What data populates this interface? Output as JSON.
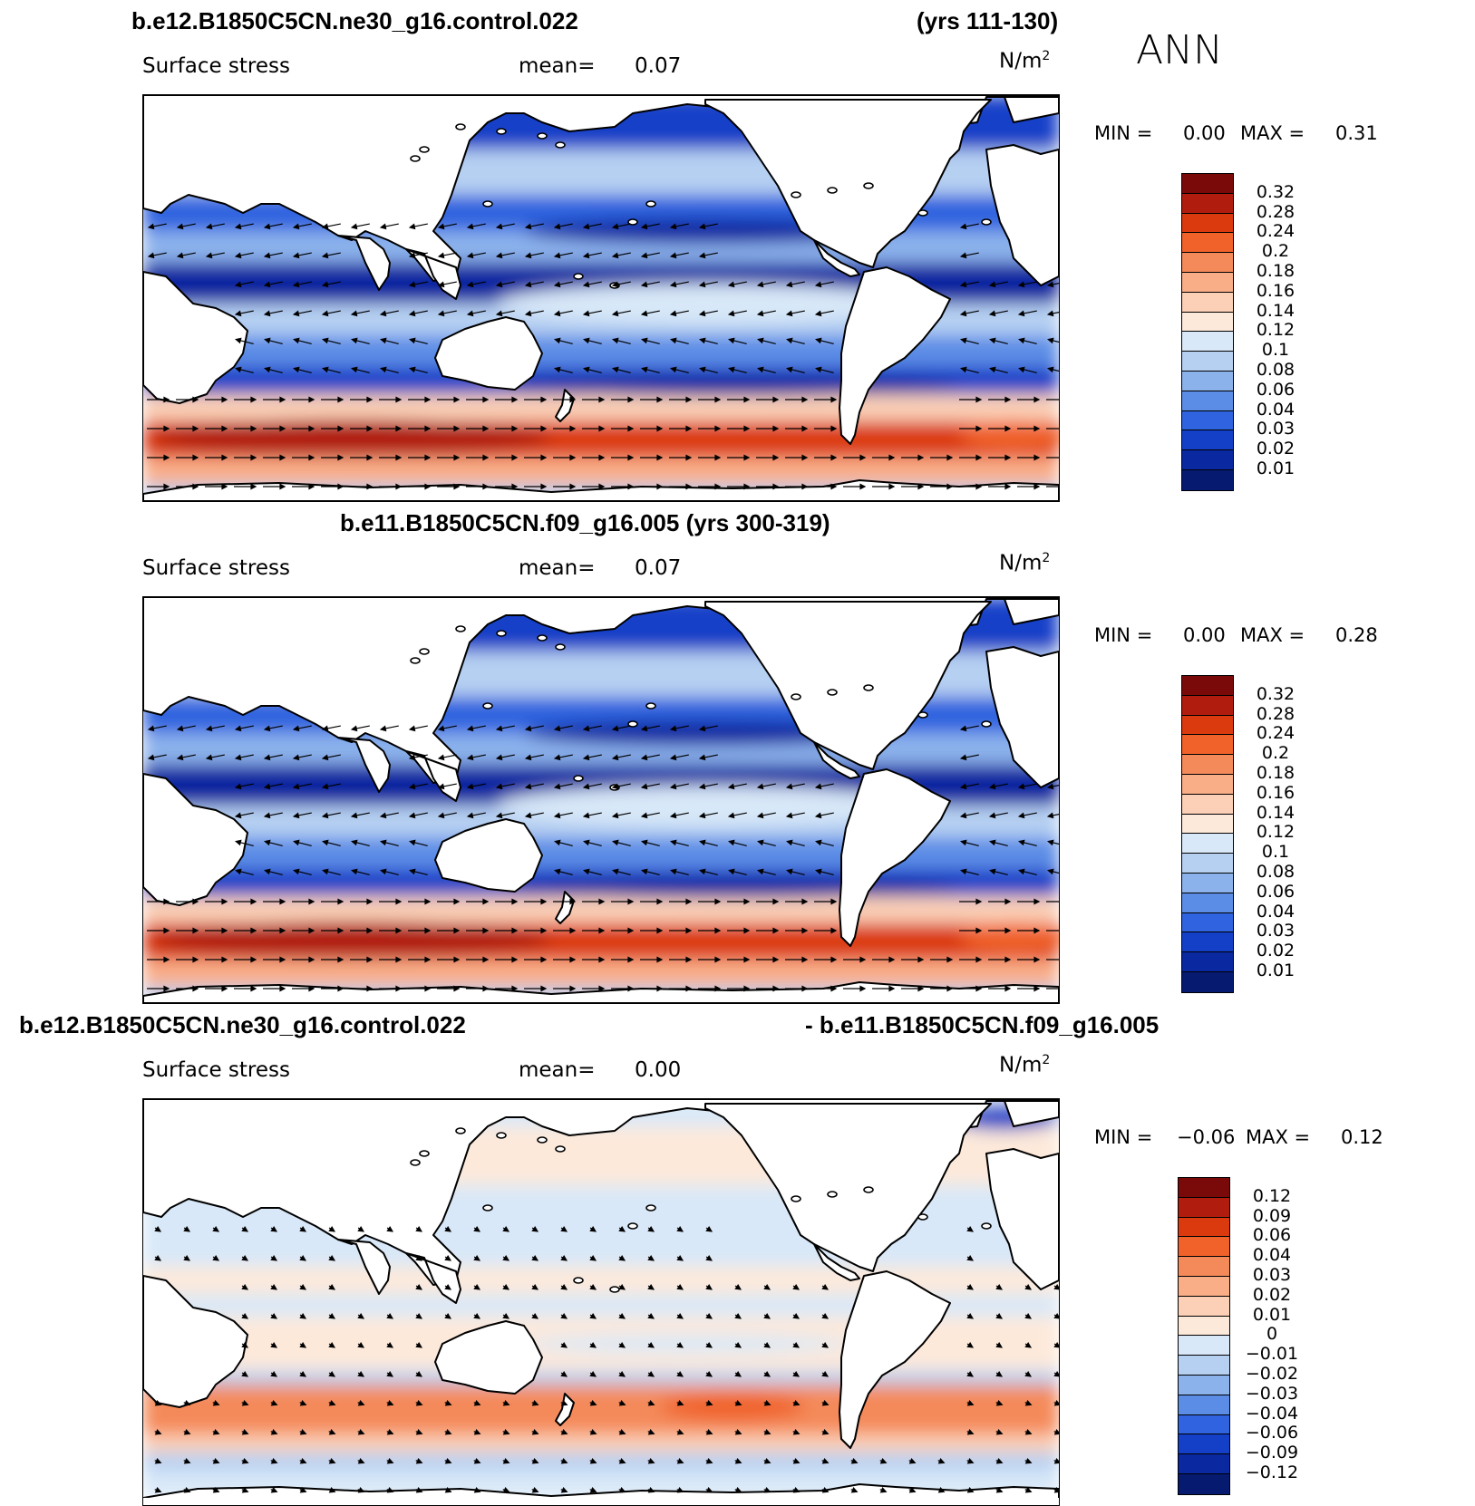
{
  "annual_label": "ANN",
  "panels": [
    {
      "id": "p1",
      "top": 0,
      "case_title_left": "b.e12.B1850C5CN.ne30_g16.control.022",
      "case_title_right": "(yrs 111-130)",
      "variable": "Surface stress",
      "mean_label": "mean=",
      "mean_value": "0.07",
      "units": "N/m",
      "units_sup": "2",
      "min_label": "MIN =",
      "min_value": "0.00",
      "max_label": "MAX =",
      "max_value": "0.31",
      "colorbar": {
        "labels": [
          "0.32",
          "0.28",
          "0.24",
          "0.2",
          "0.18",
          "0.16",
          "0.14",
          "0.12",
          "0.1",
          "0.08",
          "0.06",
          "0.04",
          "0.03",
          "0.02",
          "0.01"
        ],
        "colors": [
          "#7a0a0a",
          "#b01d0e",
          "#db3a0f",
          "#f0622a",
          "#f48a5a",
          "#f9ae88",
          "#fbd0b6",
          "#fde9da",
          "#d8e8f8",
          "#b6d0f2",
          "#8cb2ec",
          "#5b8de6",
          "#2f63df",
          "#1440c8",
          "#0a28a0",
          "#061a70"
        ]
      }
    },
    {
      "id": "p2",
      "case_title_center": "b.e11.B1850C5CN.f09_g16.005 (yrs 300-319)",
      "variable": "Surface stress",
      "mean_label": "mean=",
      "mean_value": "0.07",
      "units": "N/m",
      "units_sup": "2",
      "min_label": "MIN =",
      "min_value": "0.00",
      "max_label": "MAX =",
      "max_value": "0.28",
      "colorbar": {
        "labels": [
          "0.32",
          "0.28",
          "0.24",
          "0.2",
          "0.18",
          "0.16",
          "0.14",
          "0.12",
          "0.1",
          "0.08",
          "0.06",
          "0.04",
          "0.03",
          "0.02",
          "0.01"
        ],
        "colors": [
          "#7a0a0a",
          "#b01d0e",
          "#db3a0f",
          "#f0622a",
          "#f48a5a",
          "#f9ae88",
          "#fbd0b6",
          "#fde9da",
          "#d8e8f8",
          "#b6d0f2",
          "#8cb2ec",
          "#5b8de6",
          "#2f63df",
          "#1440c8",
          "#0a28a0",
          "#061a70"
        ]
      }
    },
    {
      "id": "p3",
      "case_title_left": "b.e12.B1850C5CN.ne30_g16.control.022",
      "case_title_right": "- b.e11.B1850C5CN.f09_g16.005",
      "variable": "Surface stress",
      "mean_label": "mean=",
      "mean_value": "0.00",
      "units": "N/m",
      "units_sup": "2",
      "min_label": "MIN =",
      "min_value": "−0.06",
      "max_label": "MAX =",
      "max_value": "0.12",
      "colorbar": {
        "labels": [
          "0.12",
          "0.09",
          "0.06",
          "0.04",
          "0.03",
          "0.02",
          "0.01",
          "0",
          "−0.01",
          "−0.02",
          "−0.03",
          "−0.04",
          "−0.06",
          "−0.09",
          "−0.12"
        ],
        "colors": [
          "#7a0a0a",
          "#b01d0e",
          "#db3a0f",
          "#f0622a",
          "#f48a5a",
          "#f9ae88",
          "#fbd0b6",
          "#fde9da",
          "#d8e8f8",
          "#b6d0f2",
          "#8cb2ec",
          "#5b8de6",
          "#2f63df",
          "#1440c8",
          "#0a28a0",
          "#061a70"
        ]
      }
    }
  ],
  "style": {
    "land": "#ffffff",
    "coast": "#000000",
    "ocean_low": "#1440c8",
    "ocean_mid": "#5b8de6",
    "ocean_light": "#b6d0f2",
    "storm_track": "#f0622a",
    "diff_pos": "#fbd0b6",
    "diff_neg": "#d8e8f8"
  }
}
